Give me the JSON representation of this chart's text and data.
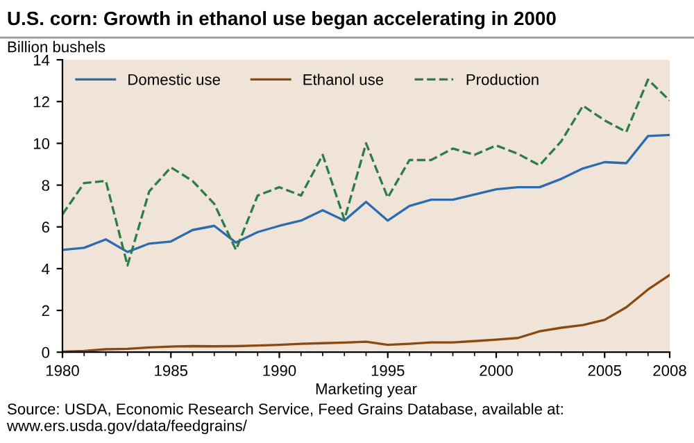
{
  "chart_data": {
    "type": "line",
    "title": "U.S. corn: Growth in ethanol use began accelerating in 2000",
    "ylabel": "Billion bushels",
    "xlabel": "Marketing year",
    "x": [
      1980,
      1981,
      1982,
      1983,
      1984,
      1985,
      1986,
      1987,
      1988,
      1989,
      1990,
      1991,
      1992,
      1993,
      1994,
      1995,
      1996,
      1997,
      1998,
      1999,
      2000,
      2001,
      2002,
      2003,
      2004,
      2005,
      2006,
      2007,
      2008
    ],
    "series": [
      {
        "name": "Domestic use",
        "color": "#2b6cb0",
        "line_style": "solid",
        "values": [
          4.9,
          5.0,
          5.4,
          4.8,
          5.2,
          5.3,
          5.85,
          6.05,
          5.25,
          5.75,
          6.05,
          6.3,
          6.8,
          6.3,
          7.2,
          6.3,
          7.0,
          7.3,
          7.3,
          7.55,
          7.8,
          7.9,
          7.9,
          8.3,
          8.8,
          9.1,
          9.05,
          10.35,
          10.4
        ]
      },
      {
        "name": "Ethanol use",
        "color": "#8b4a12",
        "line_style": "solid",
        "values": [
          0.03,
          0.06,
          0.14,
          0.16,
          0.23,
          0.27,
          0.29,
          0.28,
          0.29,
          0.32,
          0.35,
          0.4,
          0.43,
          0.46,
          0.5,
          0.35,
          0.4,
          0.47,
          0.47,
          0.53,
          0.6,
          0.68,
          1.0,
          1.17,
          1.3,
          1.55,
          2.15,
          3.0,
          3.7
        ]
      },
      {
        "name": "Production",
        "color": "#2e7d46",
        "line_style": "dashed",
        "values": [
          6.6,
          8.1,
          8.2,
          4.15,
          7.7,
          8.85,
          8.2,
          7.1,
          4.9,
          7.5,
          7.9,
          7.5,
          9.45,
          6.35,
          10.0,
          7.4,
          9.2,
          9.2,
          9.75,
          9.45,
          9.9,
          9.5,
          8.95,
          10.1,
          11.8,
          11.1,
          10.55,
          13.05,
          12.05
        ]
      }
    ],
    "xlim": [
      1980,
      2008
    ],
    "xticks": [
      1980,
      1985,
      1990,
      1995,
      2000,
      2005,
      2008
    ],
    "ylim": [
      0,
      14
    ],
    "yticks": [
      0,
      2,
      4,
      6,
      8,
      10,
      12,
      14
    ],
    "legend": "top left",
    "grid": false,
    "marker": "none",
    "annotations": [
      "Source: USDA, Economic Research Service, Feed Grains Database, available at: www.ers.usda.gov/data/feedgrains/"
    ]
  }
}
